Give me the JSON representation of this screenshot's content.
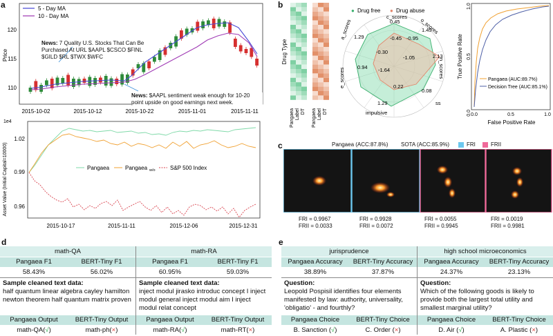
{
  "panel_labels": {
    "a": "a",
    "b": "b",
    "c": "c",
    "d": "d",
    "e": "e"
  },
  "panel_a_top": {
    "ylabel": "Price",
    "legend": [
      "5 - Day MA",
      "10 - Day MA"
    ],
    "yticks": [
      "120",
      "115",
      "110"
    ],
    "xticks": [
      "2015-10-02",
      "2015-10-12",
      "2015-10-22",
      "2015-11-01",
      "2015-11-11"
    ],
    "news1": {
      "prefix": "News:",
      "text": " 7 Quality U.S. Stocks That Can Be Purchased At URL $AAPL $CSCO $FINL $GILD $RL $TWX $WFC"
    },
    "news2": {
      "prefix": "News:",
      "text": " $AAPL sentiment weak enough for 10-20 point upside on good earnings next week."
    }
  },
  "panel_a_bottom": {
    "exp": "1e4",
    "ylabel": "Asset Value (Initial Capital=10000)",
    "yticks": [
      "1.02",
      "0.99",
      "0.96"
    ],
    "xticks": [
      "2015-10-17",
      "2015-11-11",
      "2015-12-06",
      "2015-12-31"
    ],
    "legend": [
      "Pangaea",
      "Pangaea",
      "S&P 500 Index"
    ],
    "legend_sub": "w/o"
  },
  "chart_data": [
    {
      "type": "candlestick",
      "ylabel": "Price",
      "x": [
        "2015-10-02",
        "2015-10-12",
        "2015-10-22",
        "2015-11-01",
        "2015-11-11"
      ],
      "ylim": [
        107,
        124
      ],
      "series": [
        {
          "name": "5 - Day MA"
        },
        {
          "name": "10 - Day MA"
        }
      ]
    },
    {
      "type": "line",
      "ylabel": "Asset Value (Initial Capital=10000)",
      "x": [
        "2015-10-17",
        "2015-11-11",
        "2015-12-06",
        "2015-12-31"
      ],
      "ylim": [
        9500,
        10600
      ],
      "series": [
        {
          "name": "Pangaea"
        },
        {
          "name": "Pangaea w/o"
        },
        {
          "name": "S&P 500 Index"
        }
      ]
    },
    {
      "type": "radar",
      "legend": [
        "Drug free",
        "Drug abuse"
      ],
      "axes": [
        "c_scores",
        "o_scores",
        "a_scores",
        "e_scores",
        "impulsive",
        "ss",
        "n_scores"
      ],
      "labels": [
        "0.45",
        "1.45",
        "-0.95",
        "-0.45",
        "1.29",
        "2.13",
        "-0.30",
        "-1.05",
        "0.94",
        "-1.64",
        "0.08",
        "0.22",
        "1.29"
      ]
    },
    {
      "type": "line",
      "xlabel": "False Positive Rate",
      "ylabel": "True Positive Rate",
      "xlim": [
        0,
        1
      ],
      "ylim": [
        0,
        1
      ],
      "series": [
        {
          "name": "Pangaea (AUC:89.7%)"
        },
        {
          "name": "Decision Tree (AUC:85.1%)"
        }
      ]
    }
  ],
  "panel_b_heat": {
    "ylabel": "Drug Type",
    "xlabels": [
      "Pangaea",
      "Label",
      "DT",
      "Pangaea",
      "Label",
      "DT"
    ]
  },
  "panel_b_radar": {
    "legend": [
      "Drug free",
      "Drug abuse"
    ],
    "axes": [
      "c_scores",
      "o_scores",
      "a_scores",
      "e_scores",
      "impulsive",
      "ss",
      "n_scores"
    ],
    "vals": [
      "0.45",
      "1.45",
      "-0.95",
      "-0.45",
      "1.29",
      "2.13",
      "-0.30",
      "-1.05",
      "0.94",
      "-1.64",
      "0.08",
      "0.22",
      "1.29"
    ]
  },
  "panel_b_roc": {
    "ylabel": "True Positive Rate",
    "xlabel": "False Positive Rate",
    "xticks": [
      "0.0",
      "0.5",
      "1.0"
    ],
    "yticks": [
      "0.0",
      "0.5",
      "1.0"
    ],
    "legend": [
      "Pangaea (AUC:89.7%)",
      "Decision Tree (AUC:85.1%)"
    ]
  },
  "panel_c": {
    "title1": "Pangaea (ACC:87.8%)",
    "title2": "SOTA (ACC:85.9%)",
    "legend": [
      "FRI",
      "FRII"
    ],
    "cap1": [
      "FRI = 0.9967",
      "FRII = 0.0033"
    ],
    "cap2": [
      "FRI = 0.9928",
      "FRII = 0.0072"
    ],
    "cap3": [
      "FRI = 0.0055",
      "FRII = 0.9945"
    ],
    "cap4": [
      "FRI = 0.0019",
      "FRII = 0.9981"
    ]
  },
  "panel_d": {
    "t1": "math-QA",
    "t2": "math-RA",
    "h": [
      "Pangaea F1",
      "BERT-Tiny F1",
      "Pangaea F1",
      "BERT-Tiny F1"
    ],
    "v": [
      "58.43%",
      "56.02%",
      "60.95%",
      "59.03%"
    ],
    "stitle": "Sample cleaned text data:",
    "s1": "half quantum linear algebra cayley hamilton newton theorem half quantum matrix proven",
    "s2": "inject modul jirasko introduc concept I inject modul general inject modul aim I inject modul relat concept",
    "oh": [
      "Pangaea Output",
      "BERT-Tiny Output",
      "Pangaea Output",
      "BERT-Tiny Output"
    ],
    "o": [
      "math-QA(",
      "math-ph(",
      "math-RA(",
      "math-RT("
    ],
    "ok": "√",
    "no": "×"
  },
  "panel_e": {
    "t1": "jurisprudence",
    "t2": "high school microeconomics",
    "h": [
      "Pangaea Accuracy",
      "BERT-Tiny Accuracy",
      "Pangaea Accuracy",
      "BERT-Tiny Accuracy"
    ],
    "v": [
      "38.89%",
      "37.87%",
      "24.37%",
      "23.13%"
    ],
    "qtitle": "Question:",
    "q1": "Leopold Pospisil identifies four elements manifested by law: authority, universality, 'obligatio' - and fourthly?",
    "q2": "Which of the following goods is likely to provide both the largest total utility and smallest marginal utility?",
    "ch": [
      "Pangaea Choice",
      "BERT-Tiny Choice",
      "Pangaea Choice",
      "BERT-Tiny Choice"
    ],
    "c": [
      "B. Sanction (",
      "C. Order (",
      "D. Air (",
      "A. Plastic ("
    ],
    "ok": "√",
    "no": "×"
  }
}
